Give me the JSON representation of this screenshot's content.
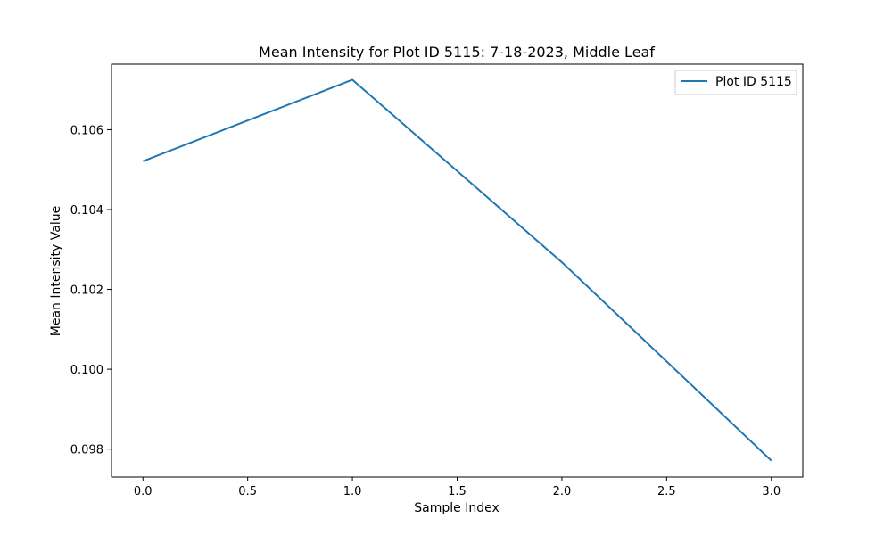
{
  "chart_data": {
    "type": "line",
    "title": "Mean Intensity for Plot ID 5115: 7-18-2023, Middle Leaf",
    "xlabel": "Sample Index",
    "ylabel": "Mean Intensity Value",
    "x": [
      0,
      1,
      2,
      3
    ],
    "series": [
      {
        "name": "Plot ID 5115",
        "values": [
          0.10521,
          0.10725,
          0.10268,
          0.09771
        ],
        "color": "#1f77b4"
      }
    ],
    "xlim": [
      -0.15,
      3.15
    ],
    "ylim": [
      0.0973,
      0.10764
    ],
    "xticks": [
      0.0,
      0.5,
      1.0,
      1.5,
      2.0,
      2.5,
      3.0
    ],
    "xtick_labels": [
      "0.0",
      "0.5",
      "1.0",
      "1.5",
      "2.0",
      "2.5",
      "3.0"
    ],
    "yticks": [
      0.098,
      0.1,
      0.102,
      0.104,
      0.106
    ],
    "ytick_labels": [
      "0.098",
      "0.100",
      "0.102",
      "0.104",
      "0.106"
    ],
    "grid": false,
    "legend": {
      "position": "top-right",
      "entries": [
        "Plot ID 5115"
      ]
    }
  }
}
